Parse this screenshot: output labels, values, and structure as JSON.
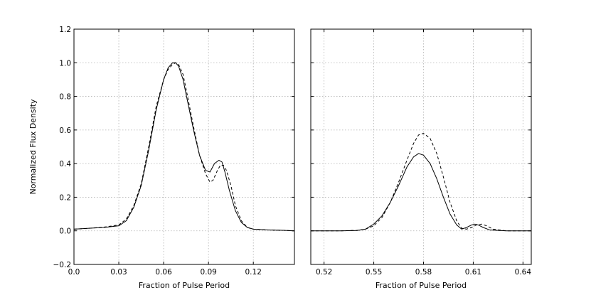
{
  "chart_data": [
    {
      "type": "line",
      "xlabel": "Fraction of Pulse Period",
      "ylabel": "Normalized Flux Density",
      "xlim": [
        0.0,
        0.1475
      ],
      "ylim": [
        -0.2,
        1.2
      ],
      "xticks": [
        0.0,
        0.03,
        0.06,
        0.09,
        0.12
      ],
      "xtick_labels": [
        "0.0",
        "0.03",
        "0.06",
        "0.09",
        "0.12"
      ],
      "yticks": [
        -0.2,
        0.0,
        0.2,
        0.4,
        0.6,
        0.8,
        1.0,
        1.2
      ],
      "ytick_labels": [
        "−0.2",
        "0.0",
        "0.2",
        "0.4",
        "0.6",
        "0.8",
        "1.0",
        "1.2"
      ],
      "grid": true,
      "series": [
        {
          "style": "solid",
          "x": [
            0.0,
            0.01,
            0.02,
            0.03,
            0.035,
            0.04,
            0.045,
            0.05,
            0.055,
            0.06,
            0.063,
            0.066,
            0.068,
            0.07,
            0.073,
            0.076,
            0.08,
            0.084,
            0.088,
            0.091,
            0.094,
            0.097,
            0.099,
            0.101,
            0.104,
            0.108,
            0.112,
            0.116,
            0.12,
            0.13,
            0.14,
            0.1475
          ],
          "y": [
            0.01,
            0.015,
            0.02,
            0.03,
            0.06,
            0.14,
            0.27,
            0.48,
            0.72,
            0.9,
            0.97,
            1.0,
            1.0,
            0.98,
            0.9,
            0.77,
            0.6,
            0.45,
            0.36,
            0.35,
            0.4,
            0.42,
            0.41,
            0.35,
            0.24,
            0.12,
            0.05,
            0.02,
            0.01,
            0.005,
            0.003,
            0.0
          ]
        },
        {
          "style": "dashed",
          "x": [
            0.0,
            0.01,
            0.02,
            0.03,
            0.035,
            0.04,
            0.045,
            0.05,
            0.055,
            0.06,
            0.063,
            0.066,
            0.068,
            0.07,
            0.073,
            0.076,
            0.08,
            0.084,
            0.088,
            0.091,
            0.093,
            0.096,
            0.098,
            0.1,
            0.102,
            0.105,
            0.108,
            0.112,
            0.116,
            0.12,
            0.13,
            0.14,
            0.1475
          ],
          "y": [
            0.01,
            0.015,
            0.022,
            0.035,
            0.07,
            0.15,
            0.28,
            0.5,
            0.74,
            0.9,
            0.96,
            0.99,
            1.0,
            0.99,
            0.93,
            0.8,
            0.62,
            0.45,
            0.34,
            0.29,
            0.3,
            0.36,
            0.39,
            0.39,
            0.36,
            0.27,
            0.15,
            0.06,
            0.02,
            0.01,
            0.005,
            0.003,
            0.0
          ]
        }
      ]
    },
    {
      "type": "line",
      "xlabel": "Fraction of Pulse Period",
      "xlim": [
        0.512,
        0.645
      ],
      "ylim": [
        -0.2,
        1.2
      ],
      "xticks": [
        0.52,
        0.55,
        0.58,
        0.61,
        0.64
      ],
      "xtick_labels": [
        "0.52",
        "0.55",
        "0.58",
        "0.61",
        "0.64"
      ],
      "yticks": [
        -0.2,
        0.0,
        0.2,
        0.4,
        0.6,
        0.8,
        1.0,
        1.2
      ],
      "ytick_labels": [],
      "grid": true,
      "series": [
        {
          "style": "solid",
          "x": [
            0.512,
            0.53,
            0.54,
            0.545,
            0.55,
            0.555,
            0.56,
            0.565,
            0.57,
            0.574,
            0.577,
            0.58,
            0.584,
            0.588,
            0.592,
            0.596,
            0.6,
            0.603,
            0.606,
            0.609,
            0.611,
            0.613,
            0.616,
            0.62,
            0.63,
            0.645
          ],
          "y": [
            0.0,
            0.0,
            0.002,
            0.01,
            0.04,
            0.09,
            0.17,
            0.27,
            0.38,
            0.44,
            0.46,
            0.45,
            0.4,
            0.31,
            0.2,
            0.1,
            0.035,
            0.01,
            0.02,
            0.035,
            0.04,
            0.035,
            0.02,
            0.005,
            0.0,
            0.0
          ]
        },
        {
          "style": "dashed",
          "x": [
            0.512,
            0.53,
            0.54,
            0.545,
            0.55,
            0.555,
            0.56,
            0.565,
            0.57,
            0.574,
            0.577,
            0.58,
            0.584,
            0.588,
            0.592,
            0.596,
            0.6,
            0.603,
            0.606,
            0.609,
            0.612,
            0.615,
            0.618,
            0.622,
            0.63,
            0.645
          ],
          "y": [
            0.0,
            0.0,
            0.003,
            0.01,
            0.03,
            0.08,
            0.17,
            0.29,
            0.42,
            0.52,
            0.57,
            0.58,
            0.55,
            0.46,
            0.32,
            0.17,
            0.06,
            0.015,
            0.01,
            0.02,
            0.035,
            0.04,
            0.03,
            0.01,
            0.0,
            0.0
          ]
        }
      ]
    }
  ]
}
